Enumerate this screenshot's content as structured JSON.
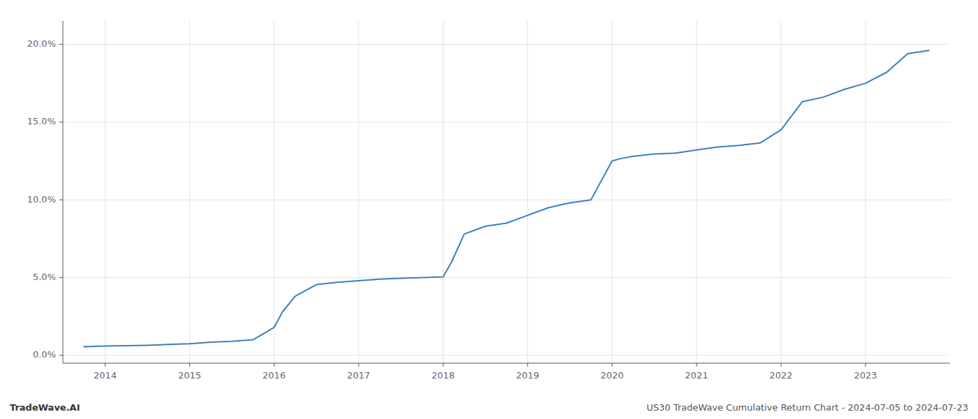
{
  "chart_data": {
    "type": "line",
    "annotations": [
      "TradeWave.AI",
      "US30 TradeWave Cumulative Return Chart - 2024-07-05 to 2024-07-23"
    ],
    "color": "#3a7ebf",
    "grid": true,
    "x": [
      2013.75,
      2014.0,
      2014.25,
      2014.5,
      2014.75,
      2015.0,
      2015.25,
      2015.5,
      2015.75,
      2016.0,
      2016.1,
      2016.25,
      2016.5,
      2016.75,
      2017.0,
      2017.25,
      2017.5,
      2017.75,
      2018.0,
      2018.1,
      2018.25,
      2018.5,
      2018.75,
      2019.0,
      2019.25,
      2019.5,
      2019.75,
      2020.0,
      2020.1,
      2020.25,
      2020.5,
      2020.75,
      2021.0,
      2021.25,
      2021.5,
      2021.75,
      2022.0,
      2022.25,
      2022.5,
      2022.75,
      2023.0,
      2023.25,
      2023.5,
      2023.75
    ],
    "values": [
      0.55,
      0.6,
      0.62,
      0.65,
      0.7,
      0.75,
      0.85,
      0.9,
      1.0,
      1.8,
      2.8,
      3.8,
      4.55,
      4.7,
      4.8,
      4.9,
      4.95,
      5.0,
      5.05,
      6.0,
      7.8,
      8.3,
      8.5,
      9.0,
      9.5,
      9.8,
      10.0,
      12.5,
      12.65,
      12.8,
      12.95,
      13.0,
      13.2,
      13.4,
      13.5,
      13.65,
      14.5,
      16.3,
      16.6,
      17.1,
      17.5,
      18.2,
      19.4,
      19.6
    ],
    "xlim": [
      2013.5,
      2024.0
    ],
    "ylim": [
      -0.5,
      21.5
    ],
    "xticks": [
      2014,
      2015,
      2016,
      2017,
      2018,
      2019,
      2020,
      2021,
      2022,
      2023
    ],
    "yticks": [
      {
        "value": 0.0,
        "label": "0.0%"
      },
      {
        "value": 5.0,
        "label": "5.0%"
      },
      {
        "value": 10.0,
        "label": "10.0%"
      },
      {
        "value": 15.0,
        "label": "15.0%"
      },
      {
        "value": 20.0,
        "label": "20.0%"
      }
    ]
  }
}
